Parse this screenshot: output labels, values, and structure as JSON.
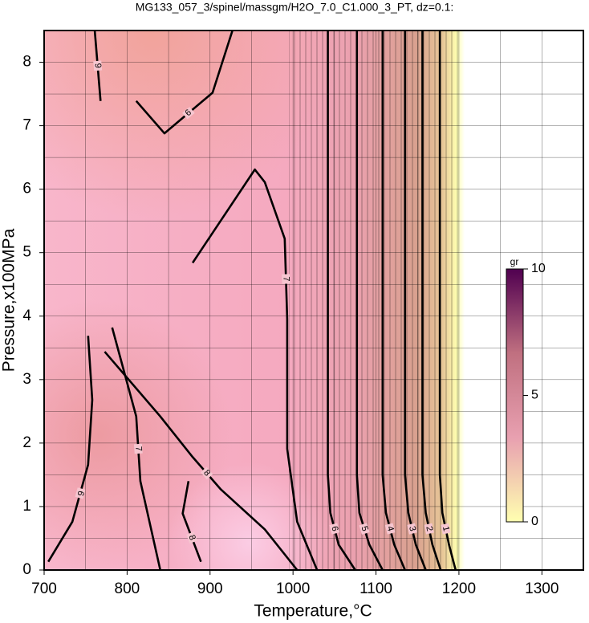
{
  "chart_data": {
    "type": "contour",
    "title": "MG133_057_3/spinel/massgm/H2O_7.0_C1.000_3_PT, dz=0.1:",
    "x_label": "Temperature,°C",
    "y_label": "Pressure,x100MPa",
    "xlim": [
      700,
      1350
    ],
    "ylim": [
      0,
      8.5
    ],
    "xticks": [
      700,
      800,
      900,
      1000,
      1100,
      1200,
      1300
    ],
    "yticks": [
      0,
      1,
      2,
      3,
      4,
      5,
      6,
      7,
      8
    ],
    "xminorticks": [
      750,
      850,
      950,
      1050,
      1150,
      1250
    ],
    "yminorticks": [
      0.5,
      1.5,
      2.5,
      3.5,
      4.5,
      5.5,
      6.5,
      7.5
    ],
    "grid": true,
    "contours": [
      {
        "level": "6",
        "x": [
          1042,
          1042,
          1045,
          1055,
          1075
        ],
        "y": [
          8.5,
          1.5,
          0.9,
          0.4,
          0
        ]
      },
      {
        "level": "5",
        "x": [
          1077,
          1077,
          1080,
          1092,
          1108
        ],
        "y": [
          8.5,
          1.5,
          0.9,
          0.4,
          0
        ]
      },
      {
        "level": "4",
        "x": [
          1108,
          1108,
          1112,
          1122,
          1135
        ],
        "y": [
          8.5,
          1.5,
          0.9,
          0.4,
          0
        ]
      },
      {
        "level": "3",
        "x": [
          1135,
          1135,
          1139,
          1148,
          1160
        ],
        "y": [
          8.5,
          1.5,
          0.9,
          0.4,
          0
        ]
      },
      {
        "level": "2",
        "x": [
          1156,
          1156,
          1160,
          1168,
          1178
        ],
        "y": [
          8.5,
          1.5,
          0.9,
          0.4,
          0
        ]
      },
      {
        "level": "1",
        "x": [
          1177,
          1177,
          1180,
          1188,
          1196
        ],
        "y": [
          8.5,
          1.5,
          0.9,
          0.4,
          0
        ]
      },
      {
        "level": "7",
        "x": [
          879,
          954,
          966,
          990,
          993,
          993,
          1005,
          1029
        ],
        "y": [
          4.84,
          6.31,
          6.11,
          5.22,
          3.95,
          1.91,
          0.76,
          0
        ]
      },
      {
        "level": "6",
        "x": [
          811,
          845,
          903,
          927
        ],
        "y": [
          7.39,
          6.88,
          7.52,
          8.5
        ]
      },
      {
        "level": "8",
        "x": [
          773,
          840,
          879,
          913,
          966,
          1005
        ],
        "y": [
          3.44,
          2.42,
          1.78,
          1.27,
          0.64,
          0
        ]
      },
      {
        "level": "7",
        "x": [
          782,
          811,
          816,
          840
        ],
        "y": [
          3.82,
          2.42,
          1.4,
          0
        ]
      },
      {
        "level": "6",
        "x": [
          753,
          758,
          753,
          734,
          705
        ],
        "y": [
          3.69,
          2.68,
          1.66,
          0.76,
          0.13
        ]
      },
      {
        "level": "8",
        "x": [
          874,
          867,
          889
        ],
        "y": [
          1.4,
          0.89,
          0.13
        ]
      },
      {
        "level": "9",
        "x": [
          761,
          768
        ],
        "y": [
          8.5,
          7.39
        ]
      }
    ],
    "colorbar": {
      "label": "gr",
      "lim": [
        0,
        10
      ],
      "ticks": [
        0,
        5,
        10
      ],
      "colors": [
        "#ffffb0",
        "#e8a0b0",
        "#c07080",
        "#500050"
      ]
    }
  }
}
